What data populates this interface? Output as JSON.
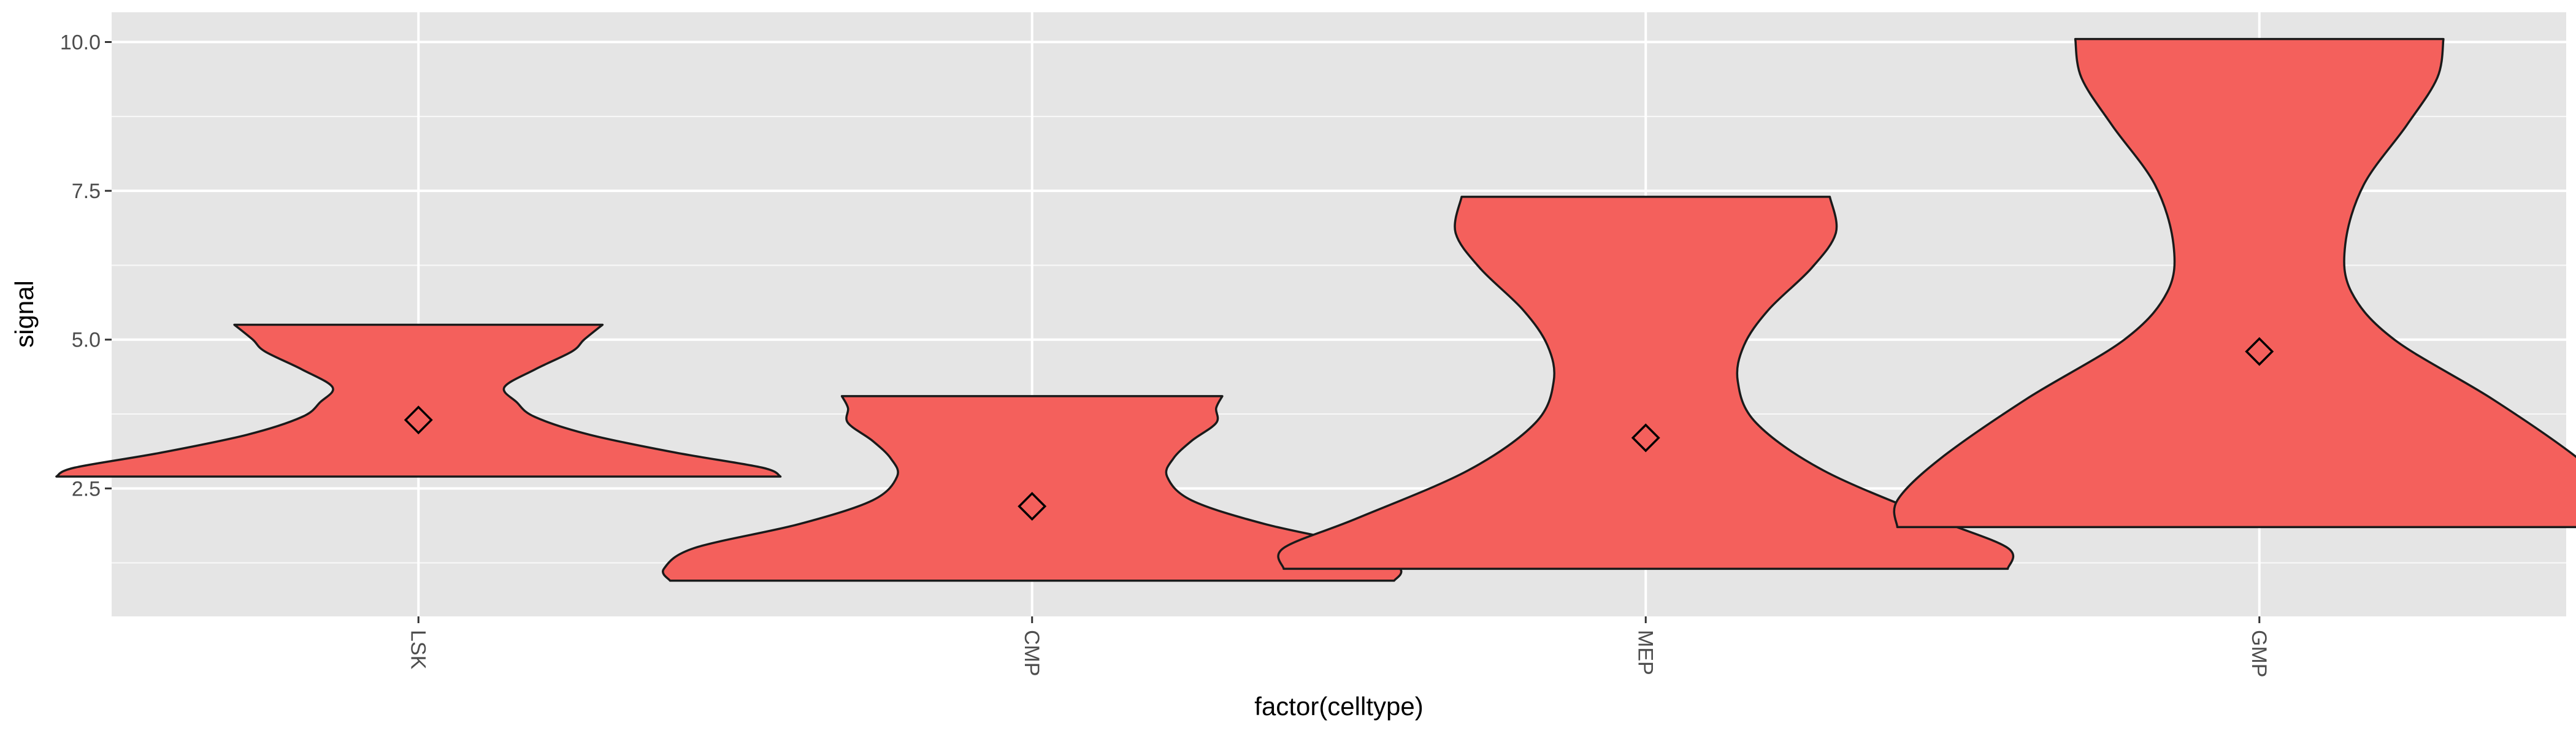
{
  "chart_data": {
    "type": "violin",
    "xlabel": "factor(celltype)",
    "ylabel": "signal",
    "categories": [
      "LSK",
      "CMP",
      "MEP",
      "GMP"
    ],
    "ylim": [
      0.35,
      10.5
    ],
    "yticks": [
      2.5,
      5.0,
      7.5,
      10.0
    ],
    "ytick_labels": [
      "2.5",
      "5.0",
      "7.5",
      "10.0"
    ],
    "grid": true,
    "legend": "none",
    "fill_color": "#F4605C",
    "outline_color": "#1a1a1a",
    "panel_background": "#E5E5E5",
    "grid_color": "#ffffff",
    "violins": [
      {
        "category": "LSK",
        "ymin": 2.7,
        "ymax": 5.25,
        "mean": 3.65,
        "profile": [
          [
            2.7,
            0.59
          ],
          [
            2.85,
            0.56
          ],
          [
            3.1,
            0.42
          ],
          [
            3.4,
            0.28
          ],
          [
            3.7,
            0.19
          ],
          [
            3.95,
            0.16
          ],
          [
            4.2,
            0.14
          ],
          [
            4.5,
            0.19
          ],
          [
            4.8,
            0.25
          ],
          [
            5.0,
            0.27
          ],
          [
            5.25,
            0.3
          ]
        ]
      },
      {
        "category": "CMP",
        "ymin": 0.95,
        "ymax": 4.05,
        "mean": 2.2,
        "profile": [
          [
            0.95,
            0.59
          ],
          [
            1.15,
            0.6
          ],
          [
            1.5,
            0.55
          ],
          [
            1.9,
            0.38
          ],
          [
            2.3,
            0.26
          ],
          [
            2.7,
            0.22
          ],
          [
            3.0,
            0.23
          ],
          [
            3.3,
            0.26
          ],
          [
            3.6,
            0.3
          ],
          [
            3.85,
            0.3
          ],
          [
            4.05,
            0.31
          ]
        ]
      },
      {
        "category": "MEP",
        "ymin": 1.15,
        "ymax": 7.4,
        "mean": 3.35,
        "profile": [
          [
            1.15,
            0.59
          ],
          [
            1.5,
            0.59
          ],
          [
            2.0,
            0.47
          ],
          [
            2.8,
            0.29
          ],
          [
            3.6,
            0.18
          ],
          [
            4.3,
            0.15
          ],
          [
            4.9,
            0.16
          ],
          [
            5.5,
            0.2
          ],
          [
            6.2,
            0.27
          ],
          [
            6.8,
            0.31
          ],
          [
            7.4,
            0.3
          ]
        ]
      },
      {
        "category": "GMP",
        "ymin": 1.85,
        "ymax": 10.05,
        "mean": 4.8,
        "profile": [
          [
            1.85,
            0.59
          ],
          [
            2.3,
            0.59
          ],
          [
            3.0,
            0.52
          ],
          [
            4.0,
            0.38
          ],
          [
            5.0,
            0.22
          ],
          [
            5.8,
            0.15
          ],
          [
            6.6,
            0.14
          ],
          [
            7.6,
            0.17
          ],
          [
            8.6,
            0.24
          ],
          [
            9.4,
            0.29
          ],
          [
            10.05,
            0.3
          ]
        ]
      }
    ]
  }
}
